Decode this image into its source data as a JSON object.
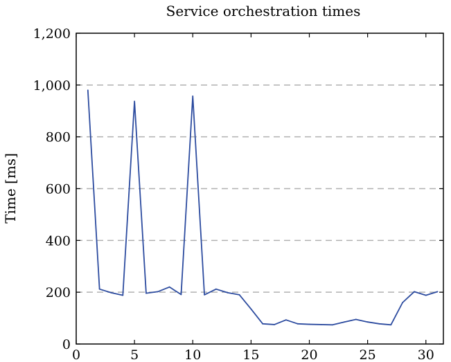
{
  "chart_data": {
    "type": "line",
    "title": "Service orchestration times",
    "xlabel": "",
    "ylabel": "Time [ms]",
    "xlim": [
      0,
      31.5
    ],
    "ylim": [
      0,
      1200
    ],
    "x_ticks": [
      0,
      5,
      10,
      15,
      20,
      25,
      30
    ],
    "x_tick_labels": [
      "0",
      "5",
      "10",
      "15",
      "20",
      "25",
      "30"
    ],
    "y_ticks": [
      0,
      200,
      400,
      600,
      800,
      1000,
      1200
    ],
    "y_tick_labels": [
      "0",
      "200",
      "400",
      "600",
      "800",
      "1,000",
      "1,200"
    ],
    "grid": "horizontal-dashed",
    "series_color": "#2c4b9f",
    "grid_color": "#b0b0b0",
    "series": [
      {
        "x": [
          1,
          2,
          3,
          4,
          5,
          6,
          7,
          8,
          9,
          10,
          11,
          12,
          13,
          14,
          15,
          16,
          17,
          18,
          19,
          20,
          21,
          22,
          23,
          24,
          25,
          26,
          27,
          28,
          29,
          30,
          31
        ],
        "values": [
          980,
          212,
          198,
          188,
          937,
          196,
          202,
          220,
          191,
          957,
          190,
          212,
          198,
          190,
          135,
          78,
          75,
          93,
          78,
          76,
          75,
          74,
          85,
          95,
          85,
          78,
          74,
          160,
          202,
          188,
          202
        ]
      }
    ]
  }
}
